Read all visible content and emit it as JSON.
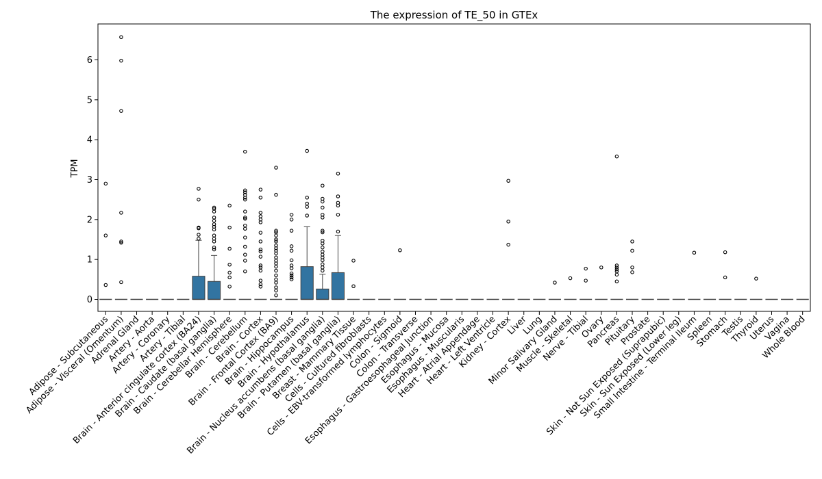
{
  "chart_data": {
    "type": "box",
    "title": "The expression of TE_50 in GTEx",
    "xlabel": "",
    "ylabel": "TPM",
    "ylim": [
      -0.3,
      6.9
    ],
    "yticks": [
      0,
      1,
      2,
      3,
      4,
      5,
      6
    ],
    "box_color": "#3274a1",
    "categories": [
      "Adipose - Subcutaneous",
      "Adipose - Visceral (Omentum)",
      "Adrenal Gland",
      "Artery - Aorta",
      "Artery - Coronary",
      "Artery - Tibial",
      "Brain - Anterior cingulate cortex (BA24)",
      "Brain - Caudate (basal ganglia)",
      "Brain - Cerebellar Hemisphere",
      "Brain - Cerebellum",
      "Brain - Cortex",
      "Brain - Frontal Cortex (BA9)",
      "Brain - Hippocampus",
      "Brain - Hypothalamus",
      "Brain - Nucleus accumbens (basal ganglia)",
      "Brain - Putamen (basal ganglia)",
      "Breast - Mammary Tissue",
      "Cells - Cultured fibroblasts",
      "Cells - EBV-transformed lymphocytes",
      "Colon - Sigmoid",
      "Colon - Transverse",
      "Esophagus - Gastroesophageal Junction",
      "Esophagus - Mucosa",
      "Esophagus - Muscularis",
      "Heart - Atrial Appendage",
      "Heart - Left Ventricle",
      "Kidney - Cortex",
      "Liver",
      "Lung",
      "Minor Salivary Gland",
      "Muscle - Skeletal",
      "Nerve - Tibial",
      "Ovary",
      "Pancreas",
      "Pituitary",
      "Prostate",
      "Skin - Not Sun Exposed (Suprapubic)",
      "Skin - Sun Exposed (Lower leg)",
      "Small Intestine - Terminal Ileum",
      "Spleen",
      "Stomach",
      "Testis",
      "Thyroid",
      "Uterus",
      "Vagina",
      "Whole Blood"
    ],
    "boxes": [
      {
        "q1": 0,
        "median": 0,
        "q3": 0,
        "whisker_low": 0,
        "whisker_high": 0,
        "outliers": [
          2.9,
          1.6,
          0.36
        ]
      },
      {
        "q1": 0,
        "median": 0,
        "q3": 0,
        "whisker_low": 0,
        "whisker_high": 0,
        "outliers": [
          6.57,
          5.98,
          4.72,
          2.17,
          1.45,
          1.42,
          0.43
        ]
      },
      {
        "q1": 0,
        "median": 0,
        "q3": 0,
        "whisker_low": 0,
        "whisker_high": 0,
        "outliers": []
      },
      {
        "q1": 0,
        "median": 0,
        "q3": 0,
        "whisker_low": 0,
        "whisker_high": 0,
        "outliers": []
      },
      {
        "q1": 0,
        "median": 0,
        "q3": 0,
        "whisker_low": 0,
        "whisker_high": 0,
        "outliers": []
      },
      {
        "q1": 0,
        "median": 0,
        "q3": 0,
        "whisker_low": 0,
        "whisker_high": 0,
        "outliers": []
      },
      {
        "q1": 0,
        "median": 0,
        "q3": 0.58,
        "whisker_low": 0,
        "whisker_high": 1.48,
        "outliers": [
          2.77,
          2.5,
          1.8,
          1.78,
          1.62,
          1.52
        ]
      },
      {
        "q1": 0,
        "median": 0,
        "q3": 0.45,
        "whisker_low": 0,
        "whisker_high": 1.1,
        "outliers": [
          2.3,
          2.27,
          2.2,
          2.05,
          1.97,
          1.88,
          1.82,
          1.75,
          1.6,
          1.52,
          1.45,
          1.3,
          1.25
        ]
      },
      {
        "q1": 0,
        "median": 0,
        "q3": 0,
        "whisker_low": 0,
        "whisker_high": 0,
        "outliers": [
          2.35,
          1.8,
          1.27,
          0.87,
          0.67,
          0.55,
          0.32
        ]
      },
      {
        "q1": 0,
        "median": 0,
        "q3": 0,
        "whisker_low": 0,
        "whisker_high": 0,
        "outliers": [
          3.7,
          2.73,
          2.68,
          2.62,
          2.55,
          2.5,
          2.2,
          2.05,
          2.02,
          1.85,
          1.77,
          1.55,
          1.32,
          1.12,
          0.97,
          0.7
        ]
      },
      {
        "q1": 0,
        "median": 0,
        "q3": 0,
        "whisker_low": 0,
        "whisker_high": 0,
        "outliers": [
          2.75,
          2.55,
          2.17,
          2.08,
          2.0,
          1.93,
          1.67,
          1.45,
          1.25,
          1.2,
          1.07,
          0.85,
          0.8,
          0.72,
          0.47,
          0.38,
          0.32
        ]
      },
      {
        "q1": 0,
        "median": 0,
        "q3": 0,
        "whisker_low": 0,
        "whisker_high": 0,
        "outliers": [
          3.3,
          2.62,
          1.72,
          1.68,
          1.6,
          1.5,
          1.45,
          1.35,
          1.28,
          1.22,
          1.15,
          1.05,
          0.97,
          0.9,
          0.82,
          0.72,
          0.6,
          0.5,
          0.42,
          0.3,
          0.22,
          0.1
        ]
      },
      {
        "q1": 0,
        "median": 0,
        "q3": 0,
        "whisker_low": 0,
        "whisker_high": 0,
        "outliers": [
          2.12,
          2.0,
          1.72,
          1.33,
          1.22,
          0.98,
          0.85,
          0.78,
          0.65,
          0.6,
          0.55,
          0.5
        ]
      },
      {
        "q1": 0,
        "median": 0,
        "q3": 0.82,
        "whisker_low": 0,
        "whisker_high": 1.82,
        "outliers": [
          3.72,
          2.55,
          2.4,
          2.32,
          2.1
        ]
      },
      {
        "q1": 0,
        "median": 0,
        "q3": 0.26,
        "whisker_low": 0,
        "whisker_high": 0.63,
        "outliers": [
          2.85,
          2.52,
          2.45,
          2.3,
          2.12,
          2.05,
          1.72,
          1.68,
          1.47,
          1.4,
          1.3,
          1.2,
          1.12,
          1.05,
          0.98,
          0.88,
          0.8,
          0.72
        ]
      },
      {
        "q1": 0,
        "median": 0,
        "q3": 0.67,
        "whisker_low": 0,
        "whisker_high": 1.6,
        "outliers": [
          3.15,
          2.58,
          2.42,
          2.35,
          2.12,
          1.7
        ]
      },
      {
        "q1": 0,
        "median": 0,
        "q3": 0,
        "whisker_low": 0,
        "whisker_high": 0,
        "outliers": [
          0.97,
          0.33
        ]
      },
      {
        "q1": 0,
        "median": 0,
        "q3": 0,
        "whisker_low": 0,
        "whisker_high": 0,
        "outliers": []
      },
      {
        "q1": 0,
        "median": 0,
        "q3": 0,
        "whisker_low": 0,
        "whisker_high": 0,
        "outliers": []
      },
      {
        "q1": 0,
        "median": 0,
        "q3": 0,
        "whisker_low": 0,
        "whisker_high": 0,
        "outliers": [
          1.23
        ]
      },
      {
        "q1": 0,
        "median": 0,
        "q3": 0,
        "whisker_low": 0,
        "whisker_high": 0,
        "outliers": []
      },
      {
        "q1": 0,
        "median": 0,
        "q3": 0,
        "whisker_low": 0,
        "whisker_high": 0,
        "outliers": []
      },
      {
        "q1": 0,
        "median": 0,
        "q3": 0,
        "whisker_low": 0,
        "whisker_high": 0,
        "outliers": []
      },
      {
        "q1": 0,
        "median": 0,
        "q3": 0,
        "whisker_low": 0,
        "whisker_high": 0,
        "outliers": []
      },
      {
        "q1": 0,
        "median": 0,
        "q3": 0,
        "whisker_low": 0,
        "whisker_high": 0,
        "outliers": []
      },
      {
        "q1": 0,
        "median": 0,
        "q3": 0,
        "whisker_low": 0,
        "whisker_high": 0,
        "outliers": []
      },
      {
        "q1": 0,
        "median": 0,
        "q3": 0,
        "whisker_low": 0,
        "whisker_high": 0,
        "outliers": [
          2.97,
          1.95,
          1.37
        ]
      },
      {
        "q1": 0,
        "median": 0,
        "q3": 0,
        "whisker_low": 0,
        "whisker_high": 0,
        "outliers": []
      },
      {
        "q1": 0,
        "median": 0,
        "q3": 0,
        "whisker_low": 0,
        "whisker_high": 0,
        "outliers": []
      },
      {
        "q1": 0,
        "median": 0,
        "q3": 0,
        "whisker_low": 0,
        "whisker_high": 0,
        "outliers": [
          0.42
        ]
      },
      {
        "q1": 0,
        "median": 0,
        "q3": 0,
        "whisker_low": 0,
        "whisker_high": 0,
        "outliers": [
          0.53
        ]
      },
      {
        "q1": 0,
        "median": 0,
        "q3": 0,
        "whisker_low": 0,
        "whisker_high": 0,
        "outliers": [
          0.77,
          0.47
        ]
      },
      {
        "q1": 0,
        "median": 0,
        "q3": 0,
        "whisker_low": 0,
        "whisker_high": 0,
        "outliers": [
          0.8
        ]
      },
      {
        "q1": 0,
        "median": 0,
        "q3": 0,
        "whisker_low": 0,
        "whisker_high": 0,
        "outliers": [
          3.58,
          0.85,
          0.8,
          0.75,
          0.7,
          0.62,
          0.45
        ]
      },
      {
        "q1": 0,
        "median": 0,
        "q3": 0,
        "whisker_low": 0,
        "whisker_high": 0,
        "outliers": [
          1.45,
          1.22,
          0.8,
          0.68
        ]
      },
      {
        "q1": 0,
        "median": 0,
        "q3": 0,
        "whisker_low": 0,
        "whisker_high": 0,
        "outliers": []
      },
      {
        "q1": 0,
        "median": 0,
        "q3": 0,
        "whisker_low": 0,
        "whisker_high": 0,
        "outliers": []
      },
      {
        "q1": 0,
        "median": 0,
        "q3": 0,
        "whisker_low": 0,
        "whisker_high": 0,
        "outliers": []
      },
      {
        "q1": 0,
        "median": 0,
        "q3": 0,
        "whisker_low": 0,
        "whisker_high": 0,
        "outliers": [
          1.17
        ]
      },
      {
        "q1": 0,
        "median": 0,
        "q3": 0,
        "whisker_low": 0,
        "whisker_high": 0,
        "outliers": []
      },
      {
        "q1": 0,
        "median": 0,
        "q3": 0,
        "whisker_low": 0,
        "whisker_high": 0,
        "outliers": [
          1.18,
          0.55
        ]
      },
      {
        "q1": 0,
        "median": 0,
        "q3": 0,
        "whisker_low": 0,
        "whisker_high": 0,
        "outliers": []
      },
      {
        "q1": 0,
        "median": 0,
        "q3": 0,
        "whisker_low": 0,
        "whisker_high": 0,
        "outliers": [
          0.52
        ]
      },
      {
        "q1": 0,
        "median": 0,
        "q3": 0,
        "whisker_low": 0,
        "whisker_high": 0,
        "outliers": []
      },
      {
        "q1": 0,
        "median": 0,
        "q3": 0,
        "whisker_low": 0,
        "whisker_high": 0,
        "outliers": []
      },
      {
        "q1": 0,
        "median": 0,
        "q3": 0,
        "whisker_low": 0,
        "whisker_high": 0,
        "outliers": []
      }
    ]
  }
}
